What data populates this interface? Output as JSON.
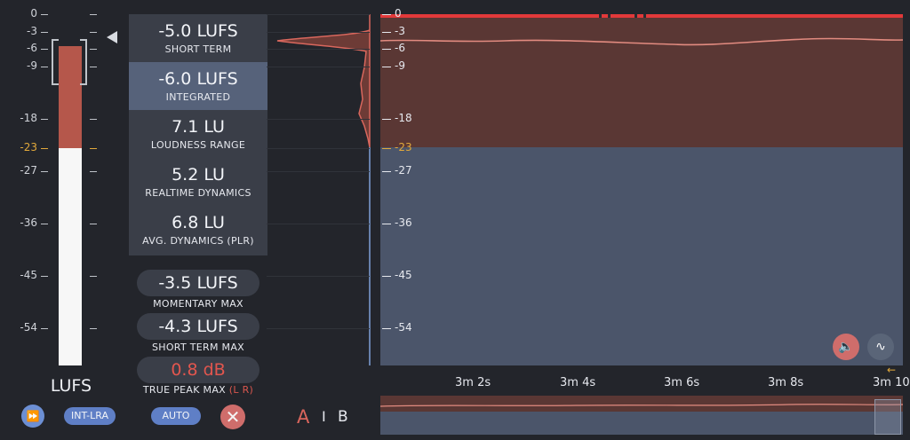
{
  "scale": {
    "ticks": [
      {
        "label": "0",
        "y": 0
      },
      {
        "label": "-3",
        "y": -3
      },
      {
        "label": "-6",
        "y": -6
      },
      {
        "label": "-9",
        "y": -9
      },
      {
        "label": "-18",
        "y": -18
      },
      {
        "label": "-23",
        "y": -23,
        "warn": true
      },
      {
        "label": "-27",
        "y": -27
      },
      {
        "label": "-36",
        "y": -36
      },
      {
        "label": "-45",
        "y": -45
      },
      {
        "label": "-54",
        "y": -54
      }
    ],
    "unit_label": "LUFS",
    "target": -23
  },
  "meter": {
    "short_term_level": -5.0,
    "target": -23
  },
  "readouts": [
    {
      "value": "-5.0 LUFS",
      "caption": "SHORT TERM",
      "selected": false
    },
    {
      "value": "-6.0 LUFS",
      "caption": "INTEGRATED",
      "selected": true
    },
    {
      "value": "7.1 LU",
      "caption": "LOUDNESS RANGE",
      "selected": false
    },
    {
      "value": "5.2 LU",
      "caption": "REALTIME DYNAMICS",
      "selected": false
    },
    {
      "value": "6.8 LU",
      "caption": "AVG. DYNAMICS (PLR)",
      "selected": false
    }
  ],
  "max_readouts": {
    "momentary_value": "-3.5 LUFS",
    "momentary_caption": "MOMENTARY MAX",
    "short_term_value": "-4.3 LUFS",
    "short_term_caption": "SHORT TERM MAX",
    "true_peak_value": "0.8 dB",
    "true_peak_caption": "TRUE PEAK MAX",
    "true_peak_channels": "(L R)"
  },
  "buttons": {
    "ff_icon": "fast-forward-icon",
    "int_lra": "INT-LRA",
    "auto": "AUTO",
    "close_icon": "close-icon",
    "ab_a": "A",
    "ab_sep": "I",
    "ab_b": "B"
  },
  "time_axis": {
    "labels": [
      "3m 2s",
      "3m 4s",
      "3m 6s",
      "3m 8s",
      "3m 10"
    ]
  },
  "graph_tools": {
    "speaker_icon": "speaker-icon",
    "waveform_icon": "waveform-icon",
    "return_icon": "return-arrow-icon"
  },
  "colors": {
    "loud_region": "#5a3734",
    "quiet_region": "#4b556a",
    "warn": "#e2a93b",
    "peak": "#e2564e",
    "accent": "#5f7fc6"
  }
}
